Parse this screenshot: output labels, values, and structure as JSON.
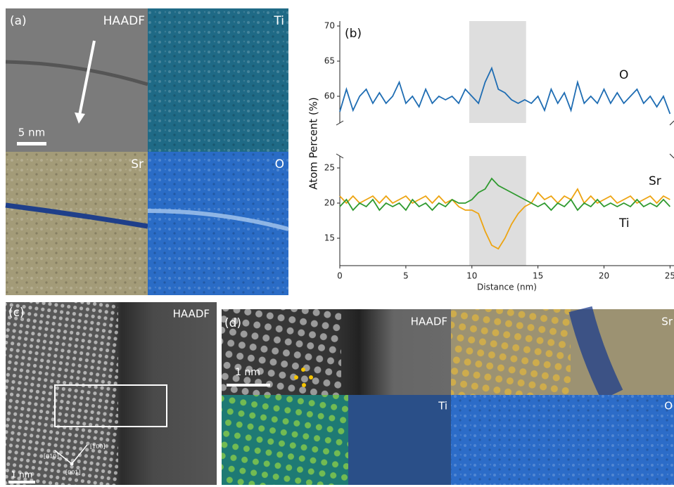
{
  "panels": {
    "a": {
      "label": "(a)",
      "tiles": [
        "HAADF",
        "Ti",
        "Sr",
        "O"
      ],
      "scale_bar": "5 nm"
    },
    "c": {
      "label": "(c)",
      "title": "HAADF",
      "scale_bar": "1 nm",
      "directions": [
        "[010]",
        "[100]",
        "[001]"
      ]
    },
    "d": {
      "label": "(d)",
      "tiles": [
        "HAADF",
        "Sr",
        "Ti",
        "O"
      ],
      "scale_bar": "1 nm"
    }
  },
  "chart_data": [
    {
      "type": "line",
      "panel_label": "(b)",
      "x": [
        0,
        0.5,
        1,
        1.5,
        2,
        2.5,
        3,
        3.5,
        4,
        4.5,
        5,
        5.5,
        6,
        6.5,
        7,
        7.5,
        8,
        8.5,
        9,
        9.5,
        10,
        10.5,
        11,
        11.5,
        12,
        12.5,
        13,
        13.5,
        14,
        14.5,
        15,
        15.5,
        16,
        16.5,
        17,
        17.5,
        18,
        18.5,
        19,
        19.5,
        20,
        20.5,
        21,
        21.5,
        22,
        22.5,
        23,
        23.5,
        24,
        24.5,
        25
      ],
      "xlim": [
        0,
        25.3
      ],
      "ylim": [
        56.2,
        70.7
      ],
      "yticks": [
        60,
        65,
        70
      ],
      "highlight": [
        9.8,
        14.1
      ],
      "series": [
        {
          "name": "O",
          "color": "#1f6db3",
          "values": [
            57.8,
            61,
            58,
            60,
            61,
            59,
            60.5,
            59,
            60,
            62,
            59,
            60,
            58.5,
            61,
            59,
            60,
            59.5,
            60,
            59,
            61,
            60,
            59,
            62,
            64,
            61,
            60.5,
            59.5,
            59,
            59.5,
            59,
            60,
            58,
            61,
            59,
            60.5,
            58,
            62,
            59,
            60,
            59,
            61,
            59,
            60.5,
            59,
            60,
            61,
            59,
            60,
            58.5,
            60,
            57.5
          ]
        }
      ]
    },
    {
      "type": "line",
      "x": [
        0,
        0.5,
        1,
        1.5,
        2,
        2.5,
        3,
        3.5,
        4,
        4.5,
        5,
        5.5,
        6,
        6.5,
        7,
        7.5,
        8,
        8.5,
        9,
        9.5,
        10,
        10.5,
        11,
        11.5,
        12,
        12.5,
        13,
        13.5,
        14,
        14.5,
        15,
        15.5,
        16,
        16.5,
        17,
        17.5,
        18,
        18.5,
        19,
        19.5,
        20,
        20.5,
        21,
        21.5,
        22,
        22.5,
        23,
        23.5,
        24,
        24.5,
        25
      ],
      "xlim": [
        0,
        25.3
      ],
      "xticks": [
        0,
        5,
        10,
        15,
        20,
        25
      ],
      "xlabel": "Distance (nm)",
      "ylabel": "Atom Percent (%)",
      "ylim": [
        11.1,
        26.7
      ],
      "yticks": [
        15,
        20,
        25
      ],
      "highlight": [
        9.8,
        14.1
      ],
      "series": [
        {
          "name": "Sr",
          "color": "#eda412",
          "values": [
            21,
            20,
            21,
            20,
            20.5,
            21,
            20,
            21,
            20,
            20.5,
            21,
            20,
            20.5,
            21,
            20,
            21,
            20,
            20.5,
            19.5,
            19,
            19,
            18.5,
            16,
            14,
            13.5,
            15,
            17,
            18.5,
            19.5,
            20,
            21.5,
            20.5,
            21,
            20,
            21,
            20.5,
            22,
            20,
            21,
            20,
            20.5,
            21,
            20,
            20.5,
            21,
            20,
            20.5,
            21,
            20,
            21,
            20.5
          ]
        },
        {
          "name": "Ti",
          "color": "#2f9a2f",
          "values": [
            19.5,
            20.5,
            19,
            20,
            19.5,
            20.5,
            19,
            20,
            19.5,
            20,
            19,
            20.5,
            19.5,
            20,
            19,
            20,
            19.5,
            20.5,
            20,
            20,
            20.5,
            21.5,
            22,
            23.5,
            22.5,
            22,
            21.5,
            21,
            20.5,
            20,
            19.5,
            20,
            19,
            20,
            19.5,
            20.5,
            19,
            20,
            19.5,
            20.5,
            19.5,
            20,
            19.5,
            20,
            19.5,
            20.5,
            19.5,
            20,
            19.5,
            20.5,
            19.5
          ]
        }
      ]
    }
  ]
}
